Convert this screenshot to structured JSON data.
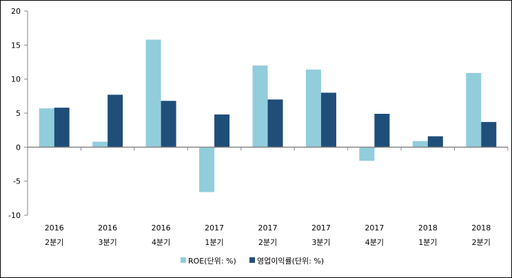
{
  "chart_data": {
    "type": "bar",
    "title": "",
    "xlabel": "",
    "ylabel": "",
    "ylim": [
      -10,
      20
    ],
    "yticks": [
      -10,
      -5,
      0,
      5,
      10,
      15,
      20
    ],
    "ytick_labels": [
      "-10",
      "-5",
      "0",
      "5",
      "10",
      "15",
      "20"
    ],
    "grid": false,
    "legend_position": "bottom",
    "categories": [
      {
        "year": "2016",
        "quarter": "2분기"
      },
      {
        "year": "2016",
        "quarter": "3분기"
      },
      {
        "year": "2016",
        "quarter": "4분기"
      },
      {
        "year": "2017",
        "quarter": "1분기"
      },
      {
        "year": "2017",
        "quarter": "2분기"
      },
      {
        "year": "2017",
        "quarter": "3분기"
      },
      {
        "year": "2017",
        "quarter": "4분기"
      },
      {
        "year": "2018",
        "quarter": "1분기"
      },
      {
        "year": "2018",
        "quarter": "2분기"
      }
    ],
    "series": [
      {
        "name": "ROE(단위: %)",
        "color": "#92cddc",
        "values": [
          5.7,
          0.8,
          15.8,
          -6.6,
          12.0,
          11.4,
          -2.0,
          0.9,
          10.9
        ]
      },
      {
        "name": "영업이익률(단위: %)",
        "color": "#1f4e79",
        "values": [
          5.8,
          7.7,
          6.8,
          4.8,
          7.0,
          8.0,
          4.9,
          1.6,
          3.7
        ]
      }
    ]
  }
}
